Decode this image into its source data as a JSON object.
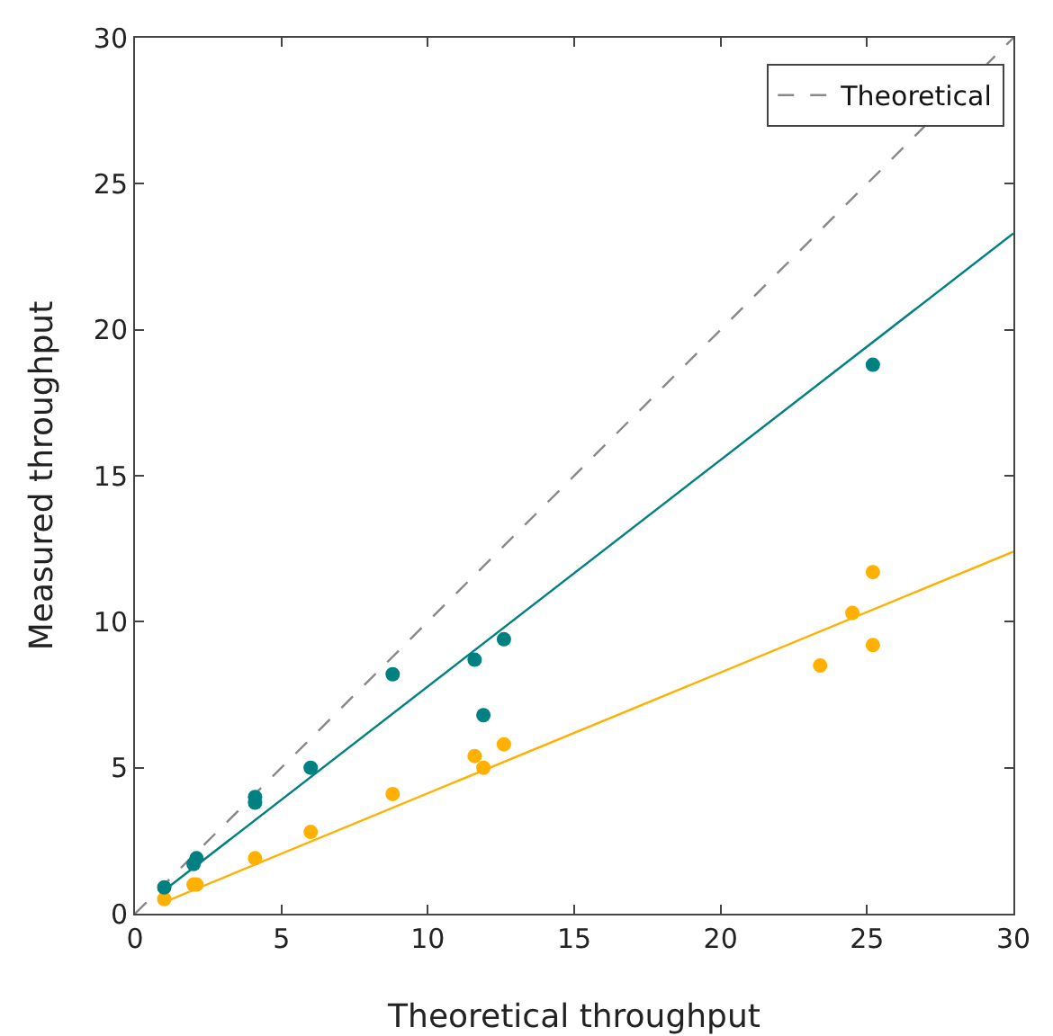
{
  "chart_data": {
    "type": "scatter",
    "xlabel": "Theoretical throughput",
    "ylabel": "Measured throughput",
    "xlim": [
      0,
      30
    ],
    "ylim": [
      0,
      30
    ],
    "xticks": [
      0,
      5,
      10,
      15,
      20,
      25,
      30
    ],
    "yticks": [
      0,
      5,
      10,
      15,
      20,
      25,
      30
    ],
    "grid": false,
    "legend": "top right",
    "marker": "circle",
    "series": [
      {
        "name": "Theoretical",
        "type": "line",
        "line_style": "dashed",
        "marker": "none",
        "color": "#888888",
        "x": [
          0,
          30
        ],
        "values": [
          0,
          30
        ]
      },
      {
        "type": "line",
        "line_style": "solid",
        "marker": "none",
        "color": "#ffb000",
        "x": [
          1,
          30
        ],
        "values": [
          0.4,
          12.4
        ]
      },
      {
        "type": "line",
        "line_style": "solid",
        "marker": "none",
        "color": "#008080",
        "x": [
          1,
          30
        ],
        "values": [
          0.8,
          23.3
        ]
      },
      {
        "color": "#ffb000",
        "x": [
          1.0,
          2.0,
          2.1,
          4.1,
          6.0,
          8.8,
          11.6,
          11.9,
          12.6,
          23.4,
          24.5,
          25.2,
          25.2
        ],
        "values": [
          0.5,
          1.0,
          1.0,
          1.9,
          2.8,
          4.1,
          5.4,
          5.0,
          5.8,
          8.5,
          10.3,
          11.7,
          9.2
        ]
      },
      {
        "color": "#008080",
        "x": [
          1.0,
          2.0,
          2.1,
          4.1,
          4.1,
          6.0,
          8.8,
          11.6,
          11.9,
          12.6,
          25.2
        ],
        "values": [
          0.9,
          1.7,
          1.9,
          3.8,
          4.0,
          5.0,
          8.2,
          8.7,
          6.8,
          9.4,
          18.8
        ]
      }
    ]
  }
}
